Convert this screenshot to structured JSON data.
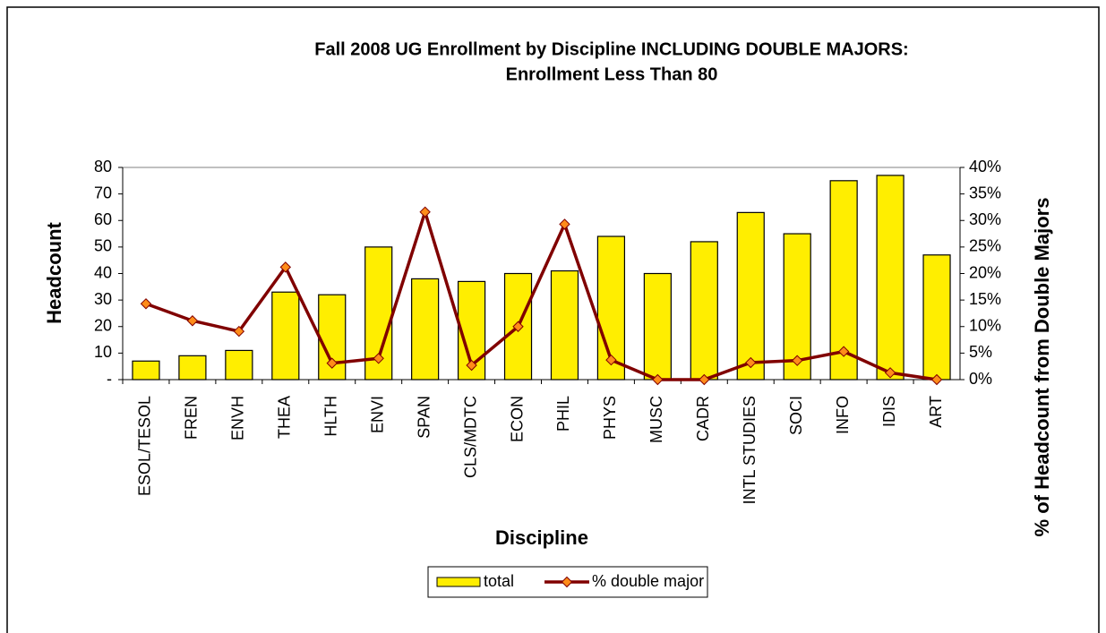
{
  "chart_data": {
    "type": "bar",
    "title": "Fall 2008 UG Enrollment by Discipline INCLUDING DOUBLE MAJORS:",
    "subtitle": "Enrollment Less Than 80",
    "x_label": "Discipline",
    "y_label": "Headcount",
    "y2_label": "% of Headcount from Double Majors",
    "categories": [
      "ESOL/TESOL",
      "FREN",
      "ENVH",
      "THEA",
      "HLTH",
      "ENVI",
      "SPAN",
      "CLS/MDTC",
      "ECON",
      "PHIL",
      "PHYS",
      "MUSC",
      "CADR",
      "INTL STUDIES",
      "SOCI",
      "INFO",
      "IDIS",
      "ART"
    ],
    "series": [
      {
        "name": "total",
        "type": "bar",
        "color": "#ffee00",
        "values": [
          7,
          9,
          11,
          33,
          32,
          50,
          38,
          37,
          40,
          41,
          54,
          40,
          52,
          63,
          55,
          75,
          77,
          47
        ]
      },
      {
        "name": "% double major",
        "type": "line",
        "axis": "y2",
        "color": "#800000",
        "marker_color": "#ff8c1a",
        "values": [
          14.3,
          11.1,
          9.1,
          21.2,
          3.1,
          4,
          31.6,
          2.7,
          10,
          29.3,
          3.7,
          0,
          0,
          3.2,
          3.6,
          5.3,
          1.3,
          0
        ]
      }
    ],
    "ylim": [
      0,
      80
    ],
    "yticks": [
      {
        "value": 0,
        "label": "-"
      },
      10,
      20,
      30,
      40,
      50,
      60,
      70,
      80
    ],
    "y2lim": [
      0,
      40
    ],
    "y2ticks": [
      {
        "value": 0,
        "label": "0%"
      },
      {
        "value": 5,
        "label": "5%"
      },
      {
        "value": 10,
        "label": "10%"
      },
      {
        "value": 15,
        "label": "15%"
      },
      {
        "value": 20,
        "label": "20%"
      },
      {
        "value": 25,
        "label": "25%"
      },
      {
        "value": 30,
        "label": "30%"
      },
      {
        "value": 35,
        "label": "35%"
      },
      {
        "value": 40,
        "label": "40%"
      }
    ],
    "legend": "bottom"
  }
}
